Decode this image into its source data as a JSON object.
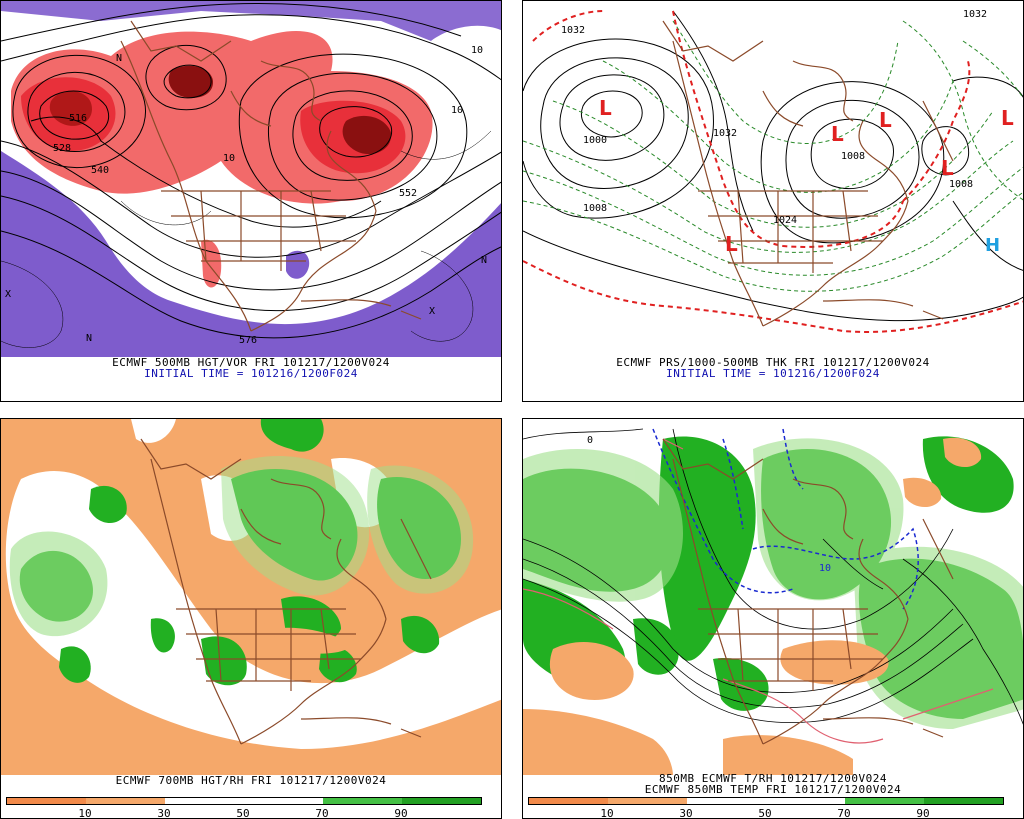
{
  "panels": [
    {
      "caption1": "ECMWF 500MB HGT/VOR FRI 101217/1200V024",
      "caption2": "INITIAL TIME = 101216/1200F024",
      "contour_labels": [
        "528",
        "516",
        "540",
        "552",
        "576",
        "10",
        "10",
        "10",
        "N",
        "N",
        "N",
        "X",
        "X"
      ]
    },
    {
      "caption1": "ECMWF PRS/1000-500MB THK FRI 101217/1200V024",
      "caption2": "INITIAL TIME = 101216/1200F024",
      "contour_labels": [
        "1032",
        "1000",
        "1008",
        "1032",
        "1008",
        "1008",
        "1024",
        "1032"
      ],
      "lows": [
        "L",
        "L",
        "L",
        "L",
        "L",
        "L"
      ],
      "highs": [
        "H"
      ]
    },
    {
      "caption1": "ECMWF 700MB HGT/RH FRI 101217/1200V024",
      "scale_labels": [
        "10",
        "30",
        "50",
        "70",
        "90"
      ]
    },
    {
      "caption1": "850MB ECMWF T/RH 101217/1200V024",
      "caption2": "ECMWF 850MB TEMP FRI 101217/1200V024",
      "contour_labels": [
        "10",
        "0"
      ],
      "scale_labels": [
        "10",
        "30",
        "50",
        "70",
        "90"
      ]
    }
  ],
  "colors": {
    "vorticity_red": "#e8303a",
    "vorticity_dark": "#8a1010",
    "vorticity_purple": "#7e5ccc",
    "rh_green": "#22b022",
    "rh_light_green": "#9ee08a",
    "rh_orange": "#f5a86a",
    "thickness_green": "#2a8a2a",
    "thickness_red": "#e02020",
    "border_brown": "#8b4a2a",
    "low_red": "#e02020",
    "high_blue": "#20a0e0"
  }
}
